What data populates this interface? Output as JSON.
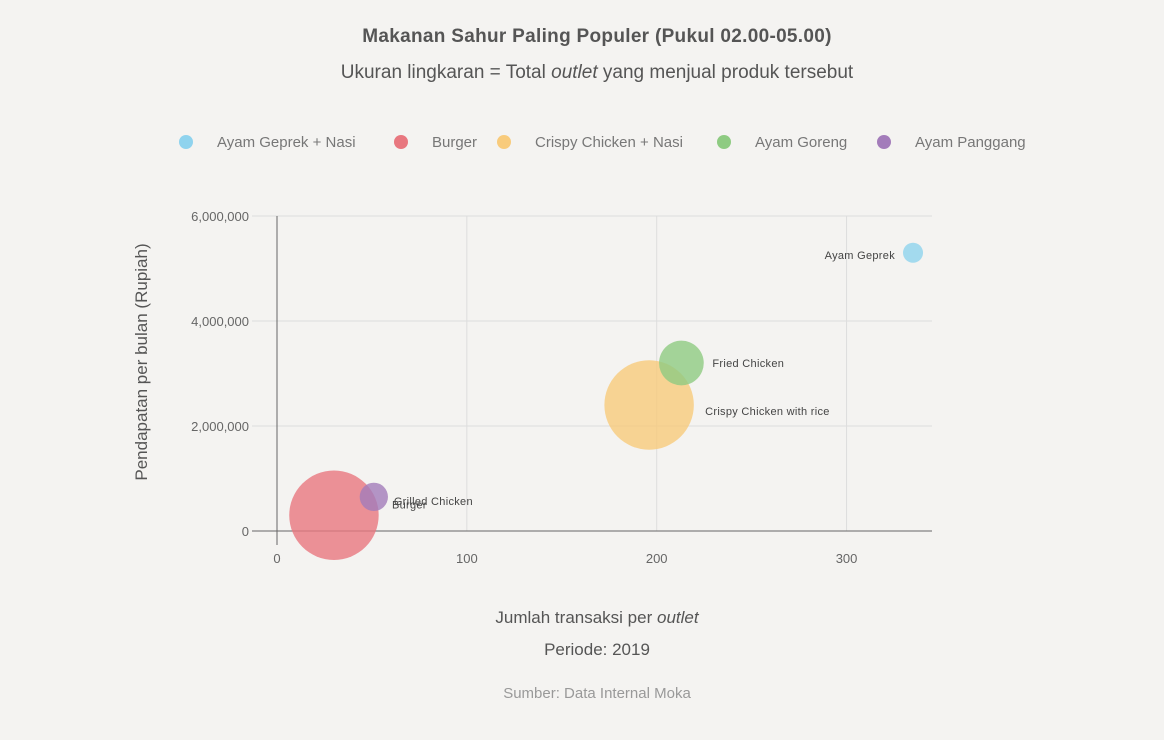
{
  "chart_data": {
    "type": "scatter",
    "title": "Makanan Sahur Paling Populer (Pukul 02.00-05.00)",
    "subtitle_prefix": "Ukuran lingkaran = Total ",
    "subtitle_italic": "outlet",
    "subtitle_suffix": " yang menjual produk tersebut",
    "xlabel_prefix": "Jumlah transaksi per ",
    "xlabel_italic": "outlet",
    "xlabel_line2": "Periode: 2019",
    "ylabel": "Pendapatan per bulan (Rupiah)",
    "xlim": [
      0,
      345
    ],
    "ylim": [
      0,
      6000000
    ],
    "xticks": [
      0,
      100,
      200,
      300
    ],
    "xtick_labels": [
      "0",
      "100",
      "200",
      "300"
    ],
    "yticks": [
      0,
      2000000,
      4000000,
      6000000
    ],
    "ytick_labels": [
      "0",
      "2,000,000",
      "4,000,000",
      "6,000,000"
    ],
    "grid": true,
    "legend_position": "top",
    "source": "Sumber: Data Internal Moka",
    "series": [
      {
        "name": "Ayam Geprek + Nasi",
        "color": "#8fd3ee",
        "x": 335,
        "y": 5300000,
        "size": 1,
        "label": "Ayam Geprek",
        "label_side": "left"
      },
      {
        "name": "Burger",
        "color": "#e8777f",
        "x": 30,
        "y": 300000,
        "size": 20,
        "label": "Burger",
        "label_side": "right"
      },
      {
        "name": "Crispy Chicken + Nasi",
        "color": "#f8cb7c",
        "x": 196,
        "y": 2400000,
        "size": 20,
        "label": "Crispy Chicken with rice",
        "label_side": "right"
      },
      {
        "name": "Ayam Goreng",
        "color": "#8ecb82",
        "x": 213,
        "y": 3200000,
        "size": 5,
        "label": "Fried Chicken",
        "label_side": "right"
      },
      {
        "name": "Ayam Panggang",
        "color": "#a37cba",
        "x": 51,
        "y": 650000,
        "size": 2,
        "label": "Grilled Chicken",
        "label_side": "right"
      }
    ]
  }
}
